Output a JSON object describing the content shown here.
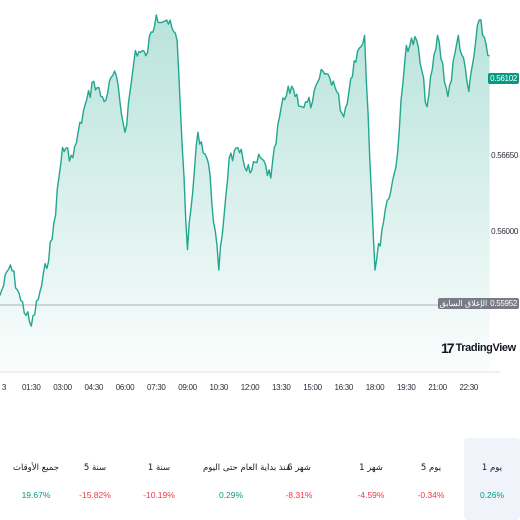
{
  "chart": {
    "type": "area",
    "symbol_prev_close_label": "الإغلاق السابق",
    "current_price": "0.56102",
    "prev_close_price": "0.55952",
    "y_ticks": [
      "0.56650",
      "0.56000"
    ],
    "x_ticks": [
      "3",
      "01:30",
      "03:00",
      "04:30",
      "06:00",
      "07:30",
      "09:00",
      "10:30",
      "12:00",
      "13:30",
      "15:00",
      "16:30",
      "18:00",
      "19:30",
      "21:00",
      "22:30"
    ],
    "colors": {
      "line": "#22a68f",
      "fill_top": "#22a68f",
      "prev_close_line": "#b2b5be",
      "price_tag": "#089981",
      "prev_tag": "#787b86"
    },
    "watermark": "TradingView",
    "watermark_mark": "17"
  },
  "chart_data": {
    "type": "area",
    "x_start": "00:00",
    "x_end": "24:00",
    "ylim": [
      0.5575,
      0.5644
    ],
    "series": [
      {
        "x": [
          "00:00",
          "00:30",
          "01:00",
          "01:30",
          "02:00",
          "02:30",
          "03:00",
          "03:30",
          "04:00",
          "04:30",
          "05:00",
          "05:30",
          "06:00",
          "06:30",
          "07:00",
          "07:30",
          "08:00",
          "08:30",
          "09:00",
          "09:30",
          "10:00",
          "10:30",
          "11:00",
          "11:30",
          "12:00",
          "12:30",
          "13:00",
          "13:30",
          "14:00",
          "14:30",
          "15:00",
          "15:30",
          "16:00",
          "16:30",
          "17:00",
          "17:30",
          "18:00",
          "18:30",
          "19:00",
          "19:30",
          "20:00",
          "20:30",
          "21:00",
          "21:30",
          "22:00",
          "22:30",
          "23:00",
          "23:30"
        ],
        "values": [
          0.559,
          0.5596,
          0.5589,
          0.5584,
          0.5592,
          0.5601,
          0.5619,
          0.5617,
          0.5626,
          0.5632,
          0.5628,
          0.5634,
          0.5622,
          0.5638,
          0.5637,
          0.5645,
          0.5644,
          0.564,
          0.5599,
          0.5622,
          0.5616,
          0.5595,
          0.5617,
          0.5618,
          0.5614,
          0.5617,
          0.5613,
          0.5627,
          0.5631,
          0.5627,
          0.5628,
          0.5634,
          0.5632,
          0.5625,
          0.5636,
          0.5641,
          0.5595,
          0.5607,
          0.5615,
          0.5639,
          0.564,
          0.5627,
          0.5641,
          0.5629,
          0.5641,
          0.563,
          0.5644,
          0.5637
        ]
      }
    ]
  },
  "periods": [
    {
      "label": "1 يوم",
      "change": "0.26%",
      "sign": "pos",
      "active": true
    },
    {
      "label": "5 يوم",
      "change": "-0.34%",
      "sign": "neg",
      "active": false
    },
    {
      "label": "1 شهر",
      "change": "-4.59%",
      "sign": "neg",
      "active": false
    },
    {
      "label": "6 شهر",
      "change": "-8.31%",
      "sign": "neg",
      "active": false
    },
    {
      "label": "منذ بداية العام حتى اليوم",
      "change": "0.29%",
      "sign": "pos",
      "active": false
    },
    {
      "label": "1 سنة",
      "change": "-10.19%",
      "sign": "neg",
      "active": false
    },
    {
      "label": "5 سنة",
      "change": "-15.82%",
      "sign": "neg",
      "active": false
    },
    {
      "label": "جميع الأوقات",
      "change": "19.67%",
      "sign": "pos",
      "active": false
    }
  ]
}
